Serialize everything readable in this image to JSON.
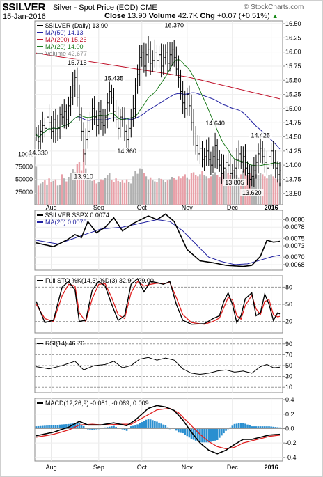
{
  "header": {
    "symbol": "$SILVER",
    "description": "Silver - Spot Price (EOD) CME",
    "watermark": "© StockCharts.com",
    "date": "15-Jan-2016",
    "close_label": "Close",
    "close_value": "13.90",
    "volume_label": "Volume",
    "volume_value": "42.7K",
    "chg_label": "Chg",
    "chg_value": "+0.07 (+0.51%)",
    "chg_arrow": "▲"
  },
  "colors": {
    "up_bar": "#000000",
    "ma50": "#1f1fa0",
    "ma200": "#c0122a",
    "ma20": "#1a7a1a",
    "volume_up": "#b0b0b0",
    "volume_down": "#e8a0a8",
    "ratio_line": "#000000",
    "ratio_ma": "#1f1fa0",
    "sto_k": "#000000",
    "sto_d": "#e02020",
    "rsi": "#000000",
    "macd": "#000000",
    "signal": "#e02020",
    "histogram": "#2a8fd0",
    "gridline": "#bbbbbb"
  },
  "chart_data": [
    {
      "type": "candlestick",
      "panel": "price",
      "legend": [
        {
          "label": "$SILVER (Daily) 13.90",
          "color": "#000000"
        },
        {
          "label": "MA(50) 14.13",
          "color": "#1f1fa0"
        },
        {
          "label": "MA(200) 15.26",
          "color": "#c0122a"
        },
        {
          "label": "MA(20) 14.00",
          "color": "#1a7a1a"
        },
        {
          "label": "Volume 42,677",
          "color": "#888888"
        }
      ],
      "ylim": [
        13.3,
        16.55
      ],
      "y_ticks": [
        "16.50",
        "16.25",
        "16.00",
        "15.75",
        "15.50",
        "15.25",
        "15.00",
        "14.75",
        "14.50",
        "14.25",
        "14.00",
        "13.75",
        "13.50"
      ],
      "volume_ticks": [
        "100K",
        "75000",
        "50000",
        "25000"
      ],
      "volume_max": 110000,
      "month_labels": [
        "Aug",
        "Sep",
        "Oct",
        "Nov",
        "Dec",
        "2016"
      ],
      "month_positions": [
        7,
        29,
        49,
        70,
        91,
        109
      ],
      "annotations": [
        {
          "text": "15.715",
          "i": 19,
          "value": 15.715,
          "pos": "above"
        },
        {
          "text": "15.435",
          "i": 36,
          "value": 15.435,
          "pos": "above"
        },
        {
          "text": "16.370",
          "i": 64,
          "value": 16.37,
          "pos": "above"
        },
        {
          "text": "14.640",
          "i": 83,
          "value": 14.64,
          "pos": "above"
        },
        {
          "text": "14.425",
          "i": 104,
          "value": 14.425,
          "pos": "above"
        },
        {
          "text": "14.330",
          "i": 1,
          "value": 14.33,
          "pos": "below"
        },
        {
          "text": "13.910",
          "i": 22,
          "value": 13.91,
          "pos": "below"
        },
        {
          "text": "14.360",
          "i": 42,
          "value": 14.36,
          "pos": "below"
        },
        {
          "text": "13.805",
          "i": 92,
          "value": 13.805,
          "pos": "below"
        },
        {
          "text": "13.620",
          "i": 100,
          "value": 13.62,
          "pos": "below"
        }
      ],
      "close": [
        14.55,
        14.42,
        14.6,
        14.7,
        14.65,
        14.85,
        14.75,
        14.6,
        14.8,
        14.55,
        14.65,
        14.9,
        14.85,
        14.95,
        14.8,
        15.05,
        15.2,
        15.4,
        15.55,
        15.2,
        14.9,
        14.6,
        14.2,
        14.45,
        14.6,
        14.8,
        15.0,
        14.85,
        14.7,
        14.95,
        14.75,
        14.7,
        14.85,
        15.1,
        15.3,
        15.2,
        14.95,
        14.8,
        14.65,
        14.85,
        14.8,
        14.6,
        14.45,
        14.65,
        14.8,
        15.0,
        15.4,
        15.6,
        15.9,
        16.0,
        15.75,
        15.95,
        16.05,
        15.8,
        15.85,
        16.0,
        15.85,
        15.95,
        15.75,
        15.9,
        16.0,
        15.8,
        15.95,
        16.05,
        15.9,
        15.7,
        15.55,
        15.3,
        15.1,
        15.0,
        15.25,
        15.05,
        14.75,
        14.55,
        14.35,
        14.2,
        14.3,
        14.1,
        14.15,
        14.25,
        14.1,
        14.0,
        14.15,
        14.35,
        14.1,
        14.0,
        13.85,
        13.95,
        14.05,
        14.0,
        13.85,
        13.9,
        13.95,
        14.1,
        14.2,
        14.05,
        14.15,
        13.95,
        13.85,
        13.75,
        13.8,
        13.9,
        14.05,
        14.2,
        14.3,
        14.15,
        14.05,
        13.95,
        14.15,
        14.25,
        14.05,
        13.95,
        13.83,
        13.9
      ],
      "volume": [
        75000,
        38000,
        42000,
        45000,
        48000,
        40000,
        52000,
        45000,
        47000,
        50000,
        38000,
        40000,
        60000,
        52000,
        46000,
        55000,
        62000,
        70000,
        64000,
        80000,
        85000,
        68000,
        110000,
        72000,
        58000,
        52000,
        47000,
        50000,
        42000,
        45000,
        50000,
        48000,
        53000,
        58000,
        63000,
        49000,
        45000,
        52000,
        47000,
        44000,
        48000,
        43000,
        50000,
        45000,
        42000,
        56000,
        66000,
        61000,
        72000,
        70000,
        62000,
        56000,
        50000,
        54000,
        48000,
        46000,
        44000,
        52000,
        51000,
        49000,
        45000,
        48000,
        50000,
        55000,
        53000,
        49000,
        56000,
        52000,
        56000,
        60000,
        54000,
        50000,
        62000,
        64000,
        58000,
        56000,
        60000,
        66000,
        58000,
        56000,
        52000,
        56000,
        60000,
        64000,
        58000,
        55000,
        60000,
        66000,
        70000,
        62000,
        58000,
        64000,
        68000,
        58000,
        54000,
        60000,
        66000,
        70000,
        58000,
        62000,
        56000,
        54000,
        60000,
        58000,
        62000,
        60000,
        56000,
        52000,
        58000,
        60000,
        56000,
        52000,
        50000,
        43000
      ]
    },
    {
      "type": "line",
      "panel": "ratio",
      "legend": [
        {
          "label": "$SILVER:$SPX 0.0074",
          "color": "#000000"
        },
        {
          "label": "MA(20) 0.0070",
          "color": "#1f1fa0"
        }
      ],
      "ylim": [
        0.00665,
        0.00825
      ],
      "y_ticks": [
        "0.0080",
        "0.0078",
        "0.0075",
        "0.0073",
        "0.0070",
        "0.0068"
      ],
      "ratio_knots": [
        [
          0,
          0.00738
        ],
        [
          8,
          0.00728
        ],
        [
          14,
          0.00745
        ],
        [
          18,
          0.0076
        ],
        [
          21,
          0.00752
        ],
        [
          24,
          0.00795
        ],
        [
          28,
          0.00765
        ],
        [
          32,
          0.0078
        ],
        [
          36,
          0.00805
        ],
        [
          40,
          0.0077
        ],
        [
          45,
          0.0079
        ],
        [
          52,
          0.0081
        ],
        [
          56,
          0.008
        ],
        [
          60,
          0.00815
        ],
        [
          64,
          0.00795
        ],
        [
          70,
          0.0072
        ],
        [
          76,
          0.0069
        ],
        [
          82,
          0.00685
        ],
        [
          88,
          0.00678
        ],
        [
          96,
          0.00675
        ],
        [
          100,
          0.00678
        ],
        [
          104,
          0.00702
        ],
        [
          107,
          0.00745
        ],
        [
          110,
          0.0074
        ],
        [
          113,
          0.00742
        ]
      ],
      "ma_knots": [
        [
          0,
          0.00745
        ],
        [
          10,
          0.00735
        ],
        [
          20,
          0.00755
        ],
        [
          30,
          0.00775
        ],
        [
          40,
          0.0078
        ],
        [
          48,
          0.0079
        ],
        [
          56,
          0.008
        ],
        [
          62,
          0.00795
        ],
        [
          68,
          0.0077
        ],
        [
          74,
          0.00735
        ],
        [
          80,
          0.007
        ],
        [
          86,
          0.00688
        ],
        [
          92,
          0.0068
        ],
        [
          98,
          0.00682
        ],
        [
          104,
          0.00692
        ],
        [
          110,
          0.00702
        ],
        [
          113,
          0.00705
        ]
      ]
    },
    {
      "type": "line",
      "panel": "stochastic",
      "legend": [
        {
          "label": "Full STO %K(14,3) %D(3) 32.90, 29.00",
          "color": "#000000"
        }
      ],
      "ylim": [
        0,
        100
      ],
      "y_ticks": [
        "80",
        "50",
        "20"
      ],
      "k_knots": [
        [
          0,
          55
        ],
        [
          4,
          18
        ],
        [
          8,
          22
        ],
        [
          12,
          80
        ],
        [
          15,
          90
        ],
        [
          18,
          75
        ],
        [
          20,
          20
        ],
        [
          23,
          22
        ],
        [
          26,
          75
        ],
        [
          29,
          90
        ],
        [
          32,
          82
        ],
        [
          35,
          50
        ],
        [
          38,
          22
        ],
        [
          41,
          30
        ],
        [
          44,
          85
        ],
        [
          47,
          95
        ],
        [
          50,
          72
        ],
        [
          53,
          90
        ],
        [
          56,
          88
        ],
        [
          59,
          85
        ],
        [
          62,
          90
        ],
        [
          65,
          50
        ],
        [
          68,
          22
        ],
        [
          72,
          15
        ],
        [
          78,
          16
        ],
        [
          82,
          25
        ],
        [
          85,
          30
        ],
        [
          87,
          55
        ],
        [
          89,
          70
        ],
        [
          91,
          50
        ],
        [
          93,
          18
        ],
        [
          95,
          30
        ],
        [
          97,
          60
        ],
        [
          100,
          70
        ],
        [
          102,
          30
        ],
        [
          104,
          35
        ],
        [
          106,
          68
        ],
        [
          108,
          50
        ],
        [
          110,
          22
        ],
        [
          112,
          35
        ],
        [
          113,
          33
        ]
      ],
      "d_knots": [
        [
          0,
          50
        ],
        [
          4,
          25
        ],
        [
          8,
          20
        ],
        [
          12,
          65
        ],
        [
          15,
          85
        ],
        [
          18,
          82
        ],
        [
          20,
          35
        ],
        [
          23,
          20
        ],
        [
          26,
          60
        ],
        [
          29,
          85
        ],
        [
          32,
          86
        ],
        [
          35,
          62
        ],
        [
          38,
          32
        ],
        [
          41,
          25
        ],
        [
          44,
          70
        ],
        [
          47,
          90
        ],
        [
          50,
          82
        ],
        [
          53,
          85
        ],
        [
          56,
          87
        ],
        [
          59,
          86
        ],
        [
          62,
          88
        ],
        [
          65,
          62
        ],
        [
          68,
          32
        ],
        [
          72,
          18
        ],
        [
          78,
          15
        ],
        [
          82,
          20
        ],
        [
          85,
          26
        ],
        [
          87,
          44
        ],
        [
          89,
          62
        ],
        [
          91,
          58
        ],
        [
          93,
          30
        ],
        [
          95,
          24
        ],
        [
          97,
          48
        ],
        [
          100,
          66
        ],
        [
          102,
          42
        ],
        [
          104,
          32
        ],
        [
          106,
          55
        ],
        [
          108,
          58
        ],
        [
          110,
          32
        ],
        [
          112,
          28
        ],
        [
          113,
          29
        ]
      ]
    },
    {
      "type": "line",
      "panel": "rsi",
      "legend": [
        {
          "label": "RSI(14) 46.76",
          "color": "#000000"
        }
      ],
      "ylim": [
        0,
        100
      ],
      "y_ticks": [
        "90",
        "70",
        "50",
        "30",
        "10"
      ],
      "rsi_knots": [
        [
          0,
          48
        ],
        [
          6,
          44
        ],
        [
          12,
          50
        ],
        [
          18,
          58
        ],
        [
          22,
          42
        ],
        [
          27,
          50
        ],
        [
          32,
          52
        ],
        [
          36,
          58
        ],
        [
          40,
          46
        ],
        [
          44,
          50
        ],
        [
          48,
          62
        ],
        [
          52,
          65
        ],
        [
          56,
          60
        ],
        [
          60,
          64
        ],
        [
          64,
          60
        ],
        [
          68,
          44
        ],
        [
          72,
          36
        ],
        [
          76,
          34
        ],
        [
          80,
          36
        ],
        [
          84,
          40
        ],
        [
          88,
          42
        ],
        [
          92,
          38
        ],
        [
          96,
          40
        ],
        [
          100,
          36
        ],
        [
          104,
          48
        ],
        [
          107,
          52
        ],
        [
          110,
          46
        ],
        [
          113,
          47
        ]
      ]
    },
    {
      "type": "line",
      "panel": "macd",
      "legend": [
        {
          "label": "MACD(12,26,9) -0.081, -0.089, 0.009",
          "color": "#000000"
        }
      ],
      "ylim": [
        -0.45,
        0.42
      ],
      "y_ticks": [
        "0.4",
        "0.2",
        "0.0",
        "-0.2",
        "-0.4"
      ],
      "macd_knots": [
        [
          0,
          -0.1
        ],
        [
          8,
          -0.05
        ],
        [
          15,
          0.02
        ],
        [
          20,
          0.1
        ],
        [
          24,
          0.05
        ],
        [
          30,
          0.05
        ],
        [
          36,
          0.08
        ],
        [
          42,
          0.04
        ],
        [
          46,
          0.12
        ],
        [
          52,
          0.28
        ],
        [
          56,
          0.32
        ],
        [
          60,
          0.3
        ],
        [
          64,
          0.25
        ],
        [
          68,
          0.12
        ],
        [
          72,
          -0.05
        ],
        [
          76,
          -0.2
        ],
        [
          80,
          -0.3
        ],
        [
          84,
          -0.35
        ],
        [
          88,
          -0.3
        ],
        [
          92,
          -0.22
        ],
        [
          96,
          -0.15
        ],
        [
          100,
          -0.15
        ],
        [
          104,
          -0.12
        ],
        [
          108,
          -0.09
        ],
        [
          113,
          -0.08
        ]
      ],
      "signal_knots": [
        [
          0,
          -0.12
        ],
        [
          8,
          -0.08
        ],
        [
          15,
          -0.02
        ],
        [
          20,
          0.05
        ],
        [
          26,
          0.06
        ],
        [
          32,
          0.05
        ],
        [
          38,
          0.06
        ],
        [
          44,
          0.06
        ],
        [
          50,
          0.16
        ],
        [
          56,
          0.26
        ],
        [
          62,
          0.28
        ],
        [
          66,
          0.22
        ],
        [
          70,
          0.1
        ],
        [
          76,
          -0.08
        ],
        [
          80,
          -0.18
        ],
        [
          84,
          -0.25
        ],
        [
          88,
          -0.28
        ],
        [
          92,
          -0.26
        ],
        [
          96,
          -0.2
        ],
        [
          100,
          -0.17
        ],
        [
          104,
          -0.14
        ],
        [
          108,
          -0.11
        ],
        [
          113,
          -0.09
        ]
      ]
    }
  ]
}
